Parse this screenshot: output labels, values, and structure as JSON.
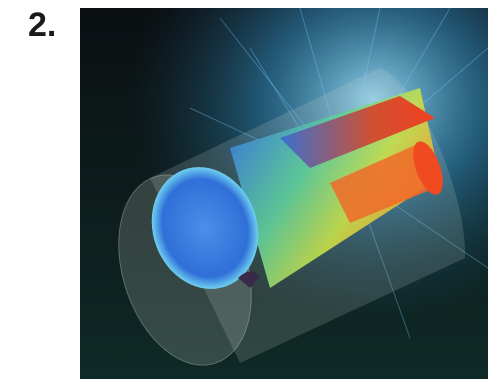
{
  "label": "2."
}
